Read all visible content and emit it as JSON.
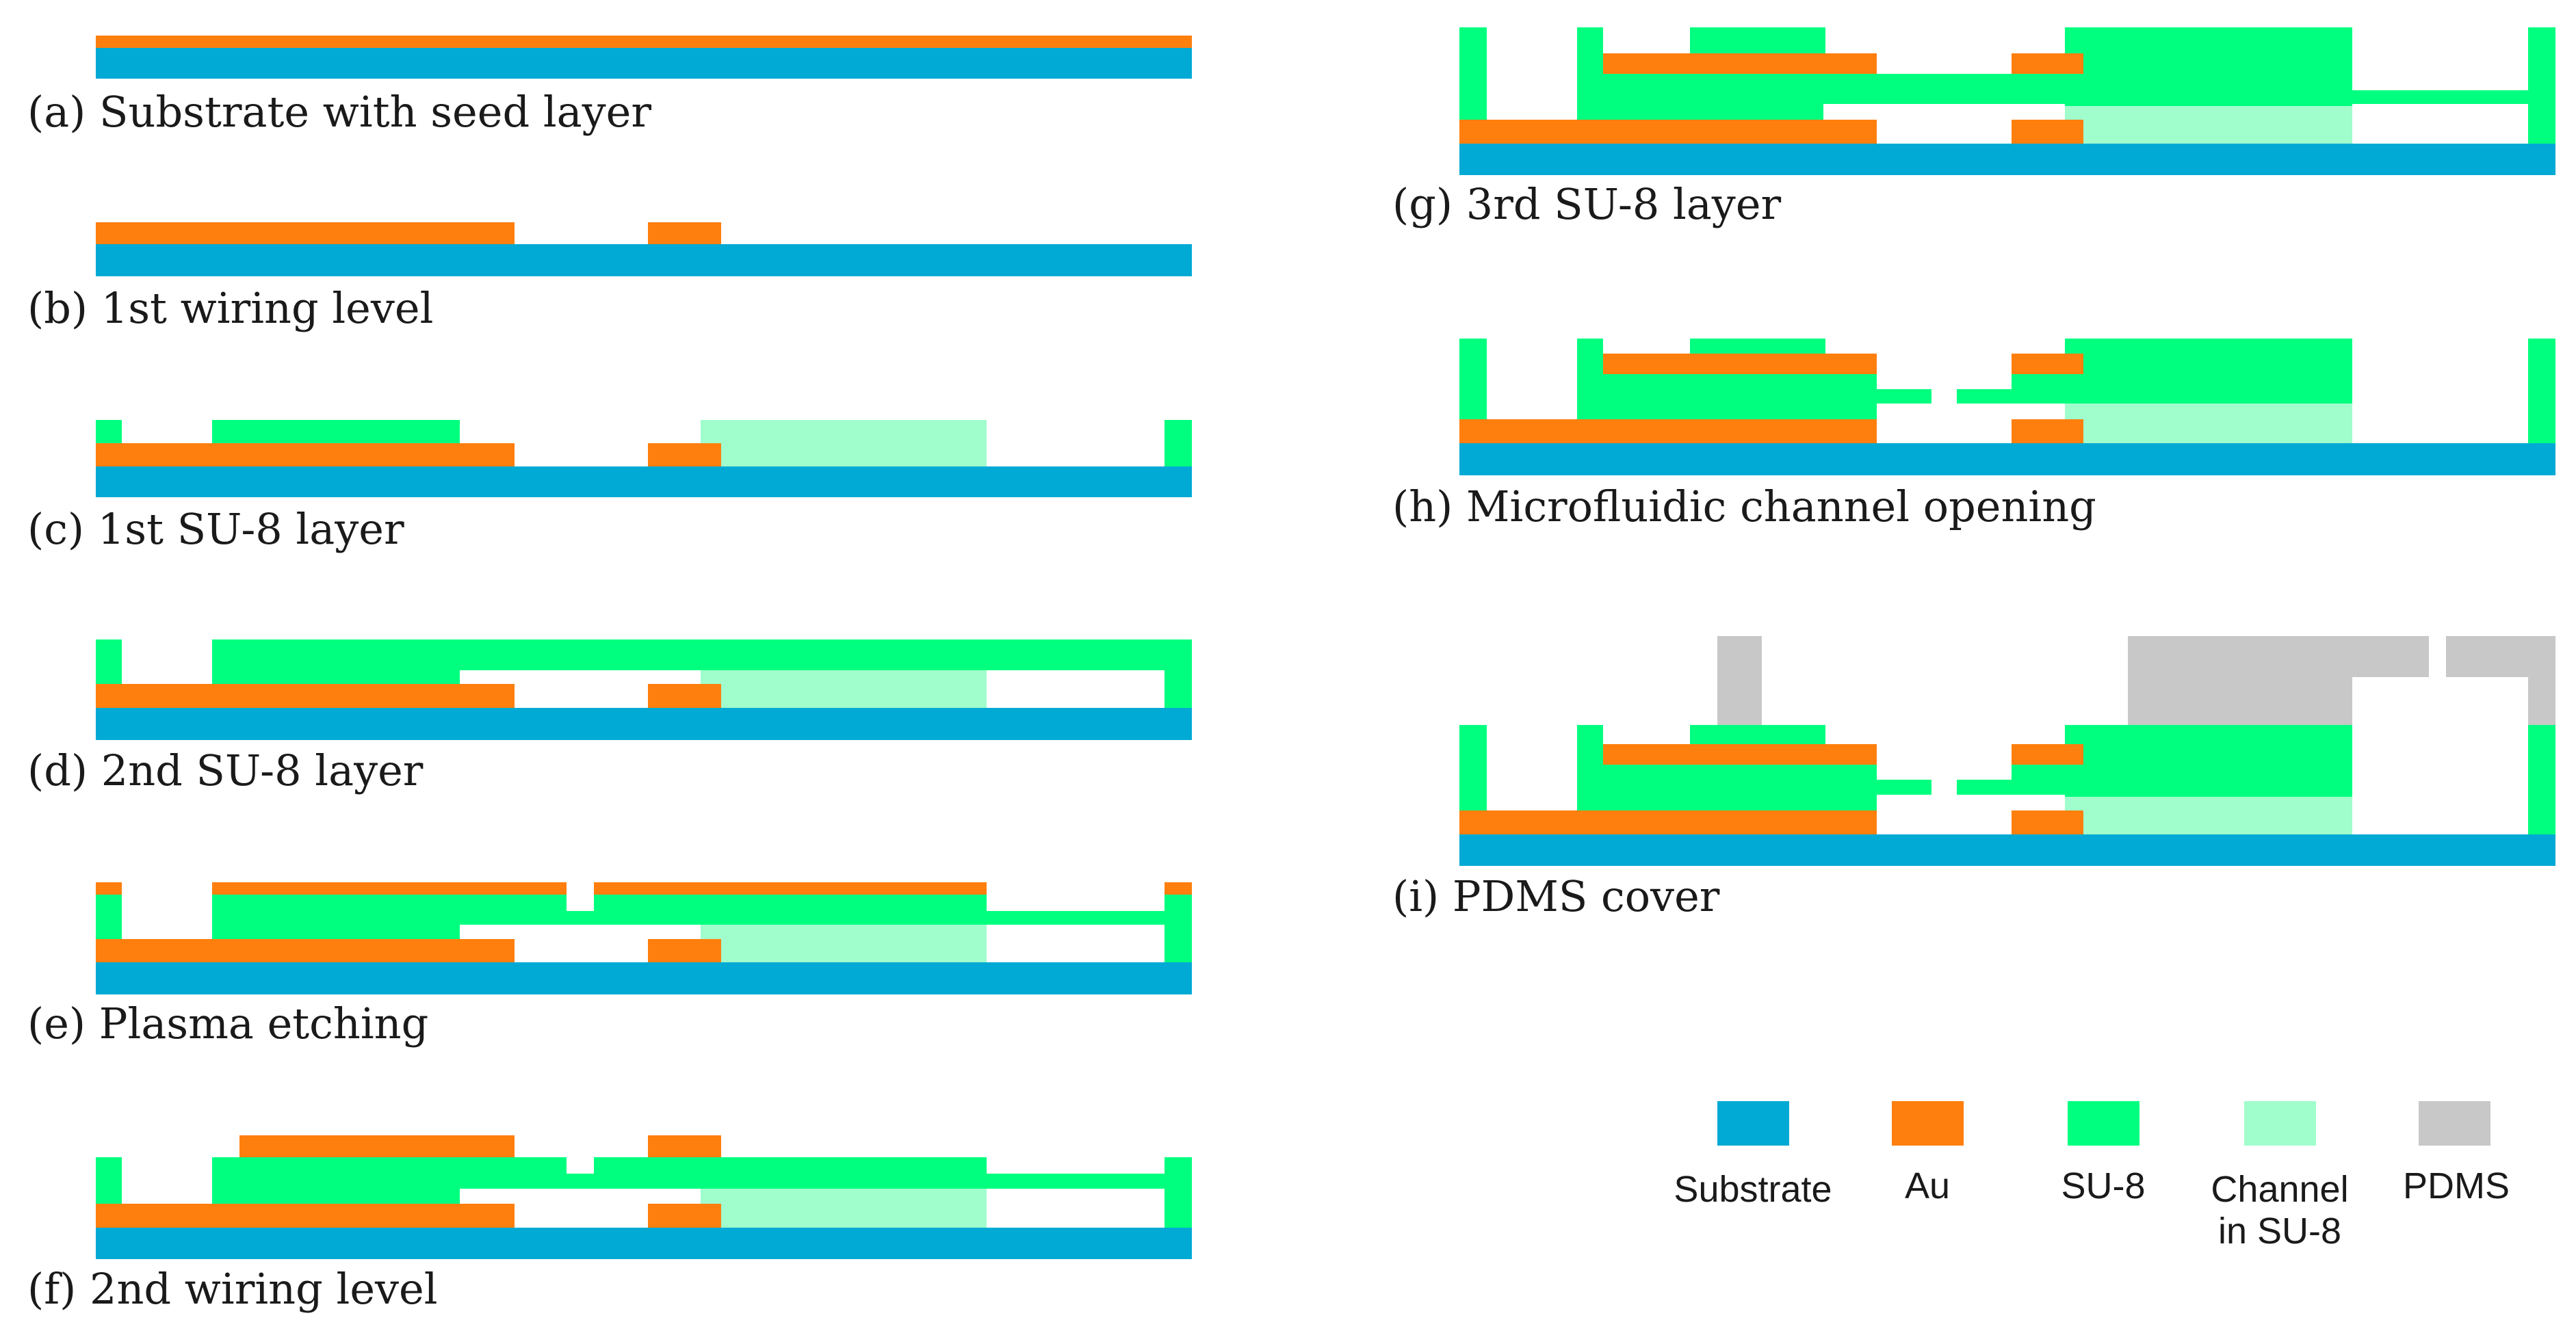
{
  "colors": {
    "substrate": "#00aad4",
    "au": "#ff7f0e",
    "su8": "#00ff7f",
    "channel": "#a0fdcc",
    "pdms": "#c8c8c8"
  },
  "panels": {
    "a": {
      "caption": "(a) Substrate with seed layer"
    },
    "b": {
      "caption": "(b) 1st wiring level"
    },
    "c": {
      "caption": "(c) 1st SU-8 layer"
    },
    "d": {
      "caption": "(d) 2nd SU-8 layer"
    },
    "e": {
      "caption": "(e) Plasma etching"
    },
    "f": {
      "caption": "(f) 2nd wiring level"
    },
    "g": {
      "caption": "(g) 3rd SU-8 layer"
    },
    "h": {
      "caption": "(h) Microfluidic channel opening"
    },
    "i": {
      "caption": "(i) PDMS cover"
    }
  },
  "legend": {
    "substrate": "Substrate",
    "au": "Au",
    "su8": "SU-8",
    "channel_line1": "Channel",
    "channel_line2": "in SU-8",
    "pdms": "PDMS"
  }
}
